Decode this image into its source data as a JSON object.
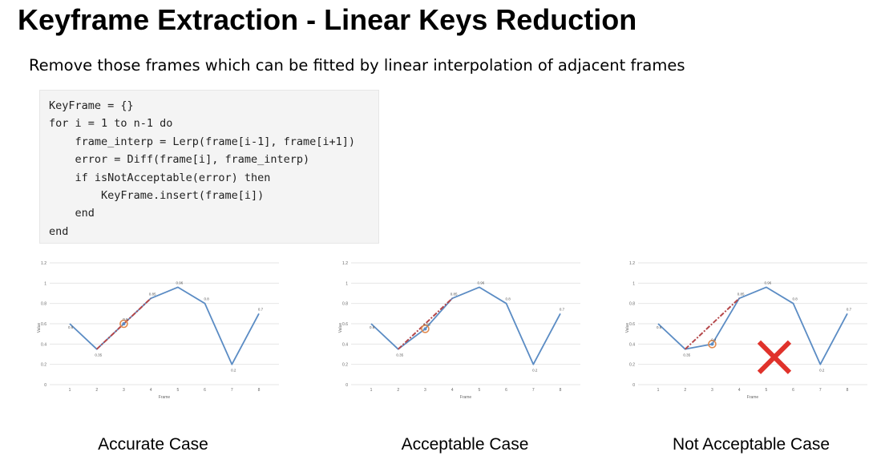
{
  "title": "Keyframe Extraction - Linear Keys Reduction",
  "subtitle": "Remove those frames which can be fitted by linear interpolation of adjacent frames",
  "code_lines": [
    "KeyFrame = {}",
    "for i = 1 to n-1 do",
    "    frame_interp = Lerp(frame[i-1], frame[i+1])",
    "    error = Diff(frame[i], frame_interp)",
    "    if isNotAcceptable(error) then",
    "        KeyFrame.insert(frame[i])",
    "    end",
    "end"
  ],
  "colors": {
    "series": "#5b8cc4",
    "interp": "#b5474a",
    "circle": "#e08a4e",
    "cross": "#e0322b",
    "grid": "#e6e6e6"
  },
  "chart_data": [
    {
      "type": "line",
      "x": [
        1,
        2,
        3,
        4,
        5,
        6,
        7,
        8
      ],
      "xlabel": "Frame",
      "ylabel": "Value",
      "yticks": [
        "0",
        "0.2",
        "0.4",
        "0.6",
        "0.8",
        "1",
        "1.2"
      ],
      "ylim": [
        0,
        1.2
      ],
      "grid": true,
      "series": [
        {
          "values": [
            0.6,
            0.35,
            0.6,
            0.85,
            0.96,
            0.8,
            0.2,
            0.7
          ]
        }
      ],
      "data_labels": [
        "0.6",
        "0.35",
        "0.6",
        "0.85",
        "0.96",
        "0.8",
        "0.2",
        "0.7"
      ],
      "interpolation": {
        "from": [
          2,
          0.35
        ],
        "to": [
          4,
          0.85
        ]
      },
      "highlight": {
        "x": 3,
        "y": 0.6
      },
      "rejected": false,
      "caption": "Accurate Case"
    },
    {
      "type": "line",
      "x": [
        1,
        2,
        3,
        4,
        5,
        6,
        7,
        8
      ],
      "xlabel": "Frame",
      "ylabel": "Value",
      "yticks": [
        "0",
        "0.2",
        "0.4",
        "0.6",
        "0.8",
        "1",
        "1.2"
      ],
      "ylim": [
        0,
        1.2
      ],
      "grid": true,
      "series": [
        {
          "values": [
            0.6,
            0.35,
            0.55,
            0.85,
            0.96,
            0.8,
            0.2,
            0.7
          ]
        }
      ],
      "data_labels": [
        "0.6",
        "0.35",
        "0.55",
        "0.85",
        "0.96",
        "0.8",
        "0.2",
        "0.7"
      ],
      "interpolation": {
        "from": [
          2,
          0.35
        ],
        "to": [
          4,
          0.85
        ]
      },
      "highlight": {
        "x": 3,
        "y": 0.55
      },
      "rejected": false,
      "caption": "Acceptable Case"
    },
    {
      "type": "line",
      "x": [
        1,
        2,
        3,
        4,
        5,
        6,
        7,
        8
      ],
      "xlabel": "Frame",
      "ylabel": "Value",
      "yticks": [
        "0",
        "0.2",
        "0.4",
        "0.6",
        "0.8",
        "1",
        "1.2"
      ],
      "ylim": [
        0,
        1.2
      ],
      "grid": true,
      "series": [
        {
          "values": [
            0.6,
            0.35,
            0.4,
            0.85,
            0.96,
            0.8,
            0.2,
            0.7
          ]
        }
      ],
      "data_labels": [
        "0.6",
        "0.35",
        "0.4",
        "0.85",
        "0.96",
        "0.8",
        "0.2",
        "0.7"
      ],
      "interpolation": {
        "from": [
          2,
          0.35
        ],
        "to": [
          4,
          0.85
        ]
      },
      "highlight": {
        "x": 3,
        "y": 0.4
      },
      "rejected": true,
      "caption": "Not Acceptable Case"
    }
  ]
}
